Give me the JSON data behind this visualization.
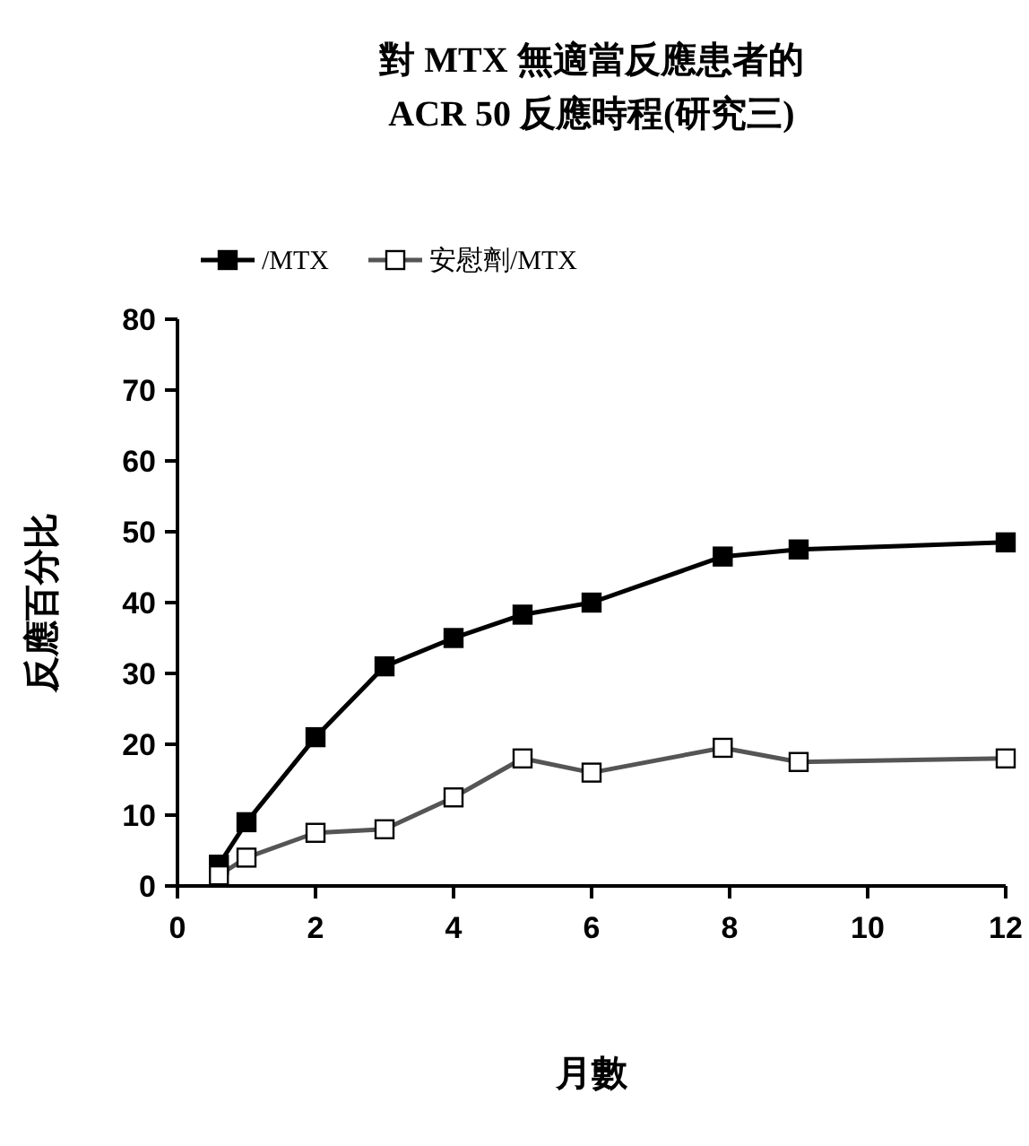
{
  "chart_data": {
    "type": "line",
    "title": "對 MTX 無適當反應患者的\nACR 50 反應時程(研究三)",
    "xlabel": "月數",
    "ylabel": "反應百分比",
    "xlim": [
      0,
      12
    ],
    "xticks": [
      0,
      2,
      4,
      6,
      8,
      10,
      12
    ],
    "ylim": [
      0,
      80
    ],
    "yticks": [
      0,
      10,
      20,
      30,
      40,
      50,
      60,
      70,
      80
    ],
    "legend": "top",
    "marker": "square",
    "line_style": "solid",
    "series": [
      {
        "name": "/MTX",
        "color": "#000000",
        "x": [
          0.6,
          1,
          2,
          3,
          4,
          5,
          6,
          7.9,
          9,
          12
        ],
        "values": [
          3,
          9,
          21,
          31,
          35,
          38.3,
          40,
          46.5,
          47.5,
          48.5
        ]
      },
      {
        "name": "安慰劑/MTX",
        "color": "#ffffff",
        "x": [
          0.6,
          1,
          2,
          3,
          4,
          5,
          6,
          7.9,
          9,
          12
        ],
        "values": [
          1.5,
          4,
          7.5,
          8,
          12.5,
          18,
          16,
          19.5,
          17.5,
          18
        ]
      }
    ]
  }
}
